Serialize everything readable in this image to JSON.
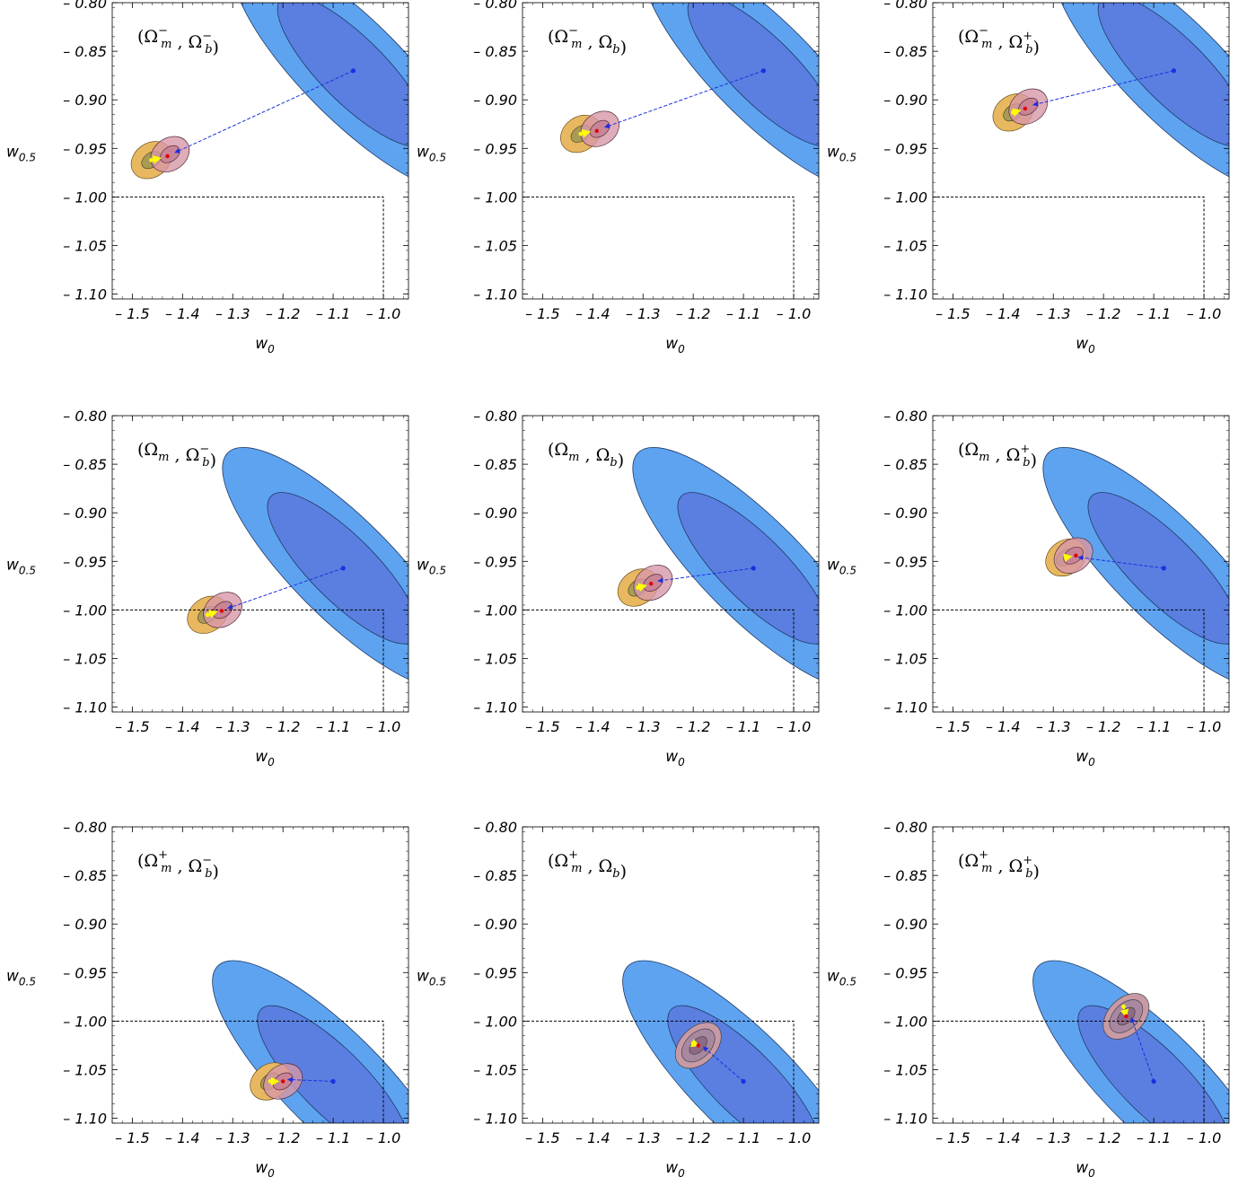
{
  "colors": {
    "blue_outer": "#5ea3f0",
    "blue_inner": "#5a7fe0",
    "orange_outer": "#e8b860",
    "orange_inner": "#a89c55",
    "pink_outer": "#d797a8",
    "pink_inner": "#c57f95",
    "gray_outer": "#c79aa6",
    "marker_blue": "#1d2fe0",
    "marker_yellow": "#ffff00",
    "marker_red": "#e00000"
  },
  "chart_data": [
    {
      "type": "scatter",
      "title": "(Ω_m^-, Ω_b^-)",
      "xlabel": "w_0",
      "ylabel": "w_0.5",
      "xlim": [
        -1.54,
        -0.95
      ],
      "ylim": [
        -1.105,
        -0.8
      ],
      "xticks": [
        "– 1.5",
        "– 1.4",
        "– 1.3",
        "– 1.2",
        "– 1.1",
        "– 1.0"
      ],
      "yticks": [
        "– 0.80",
        "– 0.85",
        "– 0.90",
        "– 0.95",
        "– 1.00",
        "– 1.05",
        "– 1.10"
      ],
      "reference_box": {
        "x": -1.0,
        "y": -1.0
      },
      "blue_best_fit": [
        -1.06,
        -0.87
      ],
      "blue_outer": {
        "cx": -1.06,
        "cy": -0.87,
        "sx": 0.1,
        "sy": 0.12,
        "rot": 45
      },
      "blue_inner": {
        "cx": -1.06,
        "cy": -0.87,
        "sx": 0.065,
        "sy": 0.075,
        "rot": 45
      },
      "orange_center": [
        -1.462,
        -0.962
      ],
      "pink_center": [
        -1.425,
        -0.956
      ],
      "path_yellow": [
        [
          -1.462,
          -0.962
        ],
        [
          -1.445,
          -0.96
        ]
      ],
      "path_red": [
        -1.43,
        -0.958
      ],
      "gray": false
    },
    {
      "type": "scatter",
      "title": "(Ω_m^-, Ω_b)",
      "xlabel": "w_0",
      "ylabel": "w_0.5",
      "xlim": [
        -1.54,
        -0.95
      ],
      "ylim": [
        -1.105,
        -0.8
      ],
      "xticks": [
        "– 1.5",
        "– 1.4",
        "– 1.3",
        "– 1.2",
        "– 1.1",
        "– 1.0"
      ],
      "yticks": [
        "– 0.80",
        "– 0.85",
        "– 0.90",
        "– 0.95",
        "– 1.00",
        "– 1.05",
        "– 1.10"
      ],
      "reference_box": {
        "x": -1.0,
        "y": -1.0
      },
      "blue_best_fit": [
        -1.06,
        -0.87
      ],
      "blue_outer": {
        "cx": -1.06,
        "cy": -0.87,
        "sx": 0.1,
        "sy": 0.12,
        "rot": 45
      },
      "blue_inner": {
        "cx": -1.06,
        "cy": -0.87,
        "sx": 0.065,
        "sy": 0.075,
        "rot": 45
      },
      "orange_center": [
        -1.424,
        -0.935
      ],
      "pink_center": [
        -1.386,
        -0.93
      ],
      "path_yellow": [
        [
          -1.424,
          -0.935
        ],
        [
          -1.407,
          -0.933
        ]
      ],
      "path_red": [
        -1.392,
        -0.932
      ],
      "gray": false
    },
    {
      "type": "scatter",
      "title": "(Ω_m^-, Ω_b^+)",
      "xlabel": "w_0",
      "ylabel": "w_0.5",
      "xlim": [
        -1.54,
        -0.95
      ],
      "ylim": [
        -1.105,
        -0.8
      ],
      "xticks": [
        "– 1.5",
        "– 1.4",
        "– 1.3",
        "– 1.2",
        "– 1.1",
        "– 1.0"
      ],
      "yticks": [
        "– 0.80",
        "– 0.85",
        "– 0.90",
        "– 0.95",
        "– 1.00",
        "– 1.05",
        "– 1.10"
      ],
      "reference_box": {
        "x": -1.0,
        "y": -1.0
      },
      "blue_best_fit": [
        -1.06,
        -0.87
      ],
      "blue_outer": {
        "cx": -1.06,
        "cy": -0.87,
        "sx": 0.1,
        "sy": 0.12,
        "rot": 45
      },
      "blue_inner": {
        "cx": -1.06,
        "cy": -0.87,
        "sx": 0.065,
        "sy": 0.075,
        "rot": 45
      },
      "orange_center": [
        -1.38,
        -0.913
      ],
      "pink_center": [
        -1.35,
        -0.907
      ],
      "path_yellow": [
        [
          -1.38,
          -0.913
        ],
        [
          -1.367,
          -0.911
        ]
      ],
      "path_red": [
        -1.356,
        -0.909
      ],
      "gray": false
    },
    {
      "type": "scatter",
      "title": "(Ω_m, Ω_b^-)",
      "xlabel": "w_0",
      "ylabel": "w_0.5",
      "xlim": [
        -1.54,
        -0.95
      ],
      "ylim": [
        -1.105,
        -0.8
      ],
      "xticks": [
        "– 1.5",
        "– 1.4",
        "– 1.3",
        "– 1.2",
        "– 1.1",
        "– 1.0"
      ],
      "yticks": [
        "– 0.80",
        "– 0.85",
        "– 0.90",
        "– 0.95",
        "– 1.00",
        "– 1.05",
        "– 1.10"
      ],
      "reference_box": {
        "x": -1.0,
        "y": -1.0
      },
      "blue_best_fit": [
        -1.08,
        -0.957
      ],
      "blue_outer": {
        "cx": -1.08,
        "cy": -0.957,
        "sx": 0.1,
        "sy": 0.12,
        "rot": 45
      },
      "blue_inner": {
        "cx": -1.08,
        "cy": -0.957,
        "sx": 0.065,
        "sy": 0.075,
        "rot": 45
      },
      "orange_center": [
        -1.35,
        -1.005
      ],
      "pink_center": [
        -1.32,
        -1.0
      ],
      "path_yellow": [
        [
          -1.35,
          -1.005
        ],
        [
          -1.333,
          -1.002
        ]
      ],
      "path_red": [
        -1.322,
        -1.001
      ],
      "gray": false
    },
    {
      "type": "scatter",
      "title": "(Ω_m, Ω_b)",
      "xlabel": "w_0",
      "ylabel": "w_0.5",
      "xlim": [
        -1.54,
        -0.95
      ],
      "ylim": [
        -1.105,
        -0.8
      ],
      "xticks": [
        "– 1.5",
        "– 1.4",
        "– 1.3",
        "– 1.2",
        "– 1.1",
        "– 1.0"
      ],
      "yticks": [
        "– 0.80",
        "– 0.85",
        "– 0.90",
        "– 0.95",
        "– 1.00",
        "– 1.05",
        "– 1.10"
      ],
      "reference_box": {
        "x": -1.0,
        "y": -1.0
      },
      "blue_best_fit": [
        -1.08,
        -0.957
      ],
      "blue_outer": {
        "cx": -1.08,
        "cy": -0.957,
        "sx": 0.1,
        "sy": 0.12,
        "rot": 45
      },
      "blue_inner": {
        "cx": -1.08,
        "cy": -0.957,
        "sx": 0.065,
        "sy": 0.075,
        "rot": 45
      },
      "orange_center": [
        -1.31,
        -0.977
      ],
      "pink_center": [
        -1.28,
        -0.972
      ],
      "path_yellow": [
        [
          -1.31,
          -0.977
        ],
        [
          -1.295,
          -0.975
        ]
      ],
      "path_red": [
        -1.284,
        -0.973
      ],
      "gray": false
    },
    {
      "type": "scatter",
      "title": "(Ω_m, Ω_b^+)",
      "xlabel": "w_0",
      "ylabel": "w_0.5",
      "xlim": [
        -1.54,
        -0.95
      ],
      "ylim": [
        -1.105,
        -0.8
      ],
      "xticks": [
        "– 1.5",
        "– 1.4",
        "– 1.3",
        "– 1.2",
        "– 1.1",
        "– 1.0"
      ],
      "yticks": [
        "– 0.80",
        "– 0.85",
        "– 0.90",
        "– 0.95",
        "– 1.00",
        "– 1.05",
        "– 1.10"
      ],
      "reference_box": {
        "x": -1.0,
        "y": -1.0
      },
      "blue_best_fit": [
        -1.08,
        -0.957
      ],
      "blue_outer": {
        "cx": -1.08,
        "cy": -0.957,
        "sx": 0.1,
        "sy": 0.12,
        "rot": 45
      },
      "blue_inner": {
        "cx": -1.08,
        "cy": -0.957,
        "sx": 0.065,
        "sy": 0.075,
        "rot": 45
      },
      "orange_center": [
        -1.275,
        -0.946
      ],
      "pink_center": [
        -1.26,
        -0.944
      ],
      "path_yellow": [
        [
          -1.275,
          -0.946
        ],
        [
          -1.265,
          -0.945
        ]
      ],
      "path_red": [
        -1.255,
        -0.944
      ],
      "gray": false
    },
    {
      "type": "scatter",
      "title": "(Ω_m^+, Ω_b^-)",
      "xlabel": "w_0",
      "ylabel": "w_0.5",
      "xlim": [
        -1.54,
        -0.95
      ],
      "ylim": [
        -1.105,
        -0.8
      ],
      "xticks": [
        "– 1.5",
        "– 1.4",
        "– 1.3",
        "– 1.2",
        "– 1.1",
        "– 1.0"
      ],
      "yticks": [
        "– 0.80",
        "– 0.85",
        "– 0.90",
        "– 0.95",
        "– 1.00",
        "– 1.05",
        "– 1.10"
      ],
      "reference_box": {
        "x": -1.0,
        "y": -1.0
      },
      "blue_best_fit": [
        -1.1,
        -1.062
      ],
      "blue_outer": {
        "cx": -1.1,
        "cy": -1.062,
        "sx": 0.1,
        "sy": 0.12,
        "rot": 45
      },
      "blue_inner": {
        "cx": -1.1,
        "cy": -1.062,
        "sx": 0.065,
        "sy": 0.075,
        "rot": 45
      },
      "orange_center": [
        -1.225,
        -1.062
      ],
      "pink_center": [
        -1.2,
        -1.062
      ],
      "path_yellow": [
        [
          -1.225,
          -1.062
        ],
        [
          -1.21,
          -1.062
        ]
      ],
      "path_red": [
        -1.2,
        -1.062
      ],
      "gray": false
    },
    {
      "type": "scatter",
      "title": "(Ω_m^+, Ω_b)",
      "xlabel": "w_0",
      "ylabel": "w_0.5",
      "xlim": [
        -1.54,
        -0.95
      ],
      "ylim": [
        -1.105,
        -0.8
      ],
      "xticks": [
        "– 1.5",
        "– 1.4",
        "– 1.3",
        "– 1.2",
        "– 1.1",
        "– 1.0"
      ],
      "yticks": [
        "– 0.80",
        "– 0.85",
        "– 0.90",
        "– 0.95",
        "– 1.00",
        "– 1.05",
        "– 1.10"
      ],
      "reference_box": {
        "x": -1.0,
        "y": -1.0
      },
      "blue_best_fit": [
        -1.1,
        -1.062
      ],
      "blue_outer": {
        "cx": -1.1,
        "cy": -1.062,
        "sx": 0.1,
        "sy": 0.12,
        "rot": 45
      },
      "blue_inner": {
        "cx": -1.1,
        "cy": -1.062,
        "sx": 0.065,
        "sy": 0.075,
        "rot": 45
      },
      "orange_center": [
        -1.19,
        -1.025
      ],
      "pink_center": [
        -1.19,
        -1.025
      ],
      "path_yellow": [
        [
          -1.2,
          -1.023
        ],
        [
          -1.19,
          -1.025
        ]
      ],
      "path_red": [
        -1.19,
        -1.025
      ],
      "gray": true
    },
    {
      "type": "scatter",
      "title": "(Ω_m^+, Ω_b^+)",
      "xlabel": "w_0",
      "ylabel": "w_0.5",
      "xlim": [
        -1.54,
        -0.95
      ],
      "ylim": [
        -1.105,
        -0.8
      ],
      "xticks": [
        "– 1.5",
        "– 1.4",
        "– 1.3",
        "– 1.2",
        "– 1.1",
        "– 1.0"
      ],
      "yticks": [
        "– 0.80",
        "– 0.85",
        "– 0.90",
        "– 0.95",
        "– 1.00",
        "– 1.05",
        "– 1.10"
      ],
      "reference_box": {
        "x": -1.0,
        "y": -1.0
      },
      "blue_best_fit": [
        -1.1,
        -1.062
      ],
      "blue_outer": {
        "cx": -1.1,
        "cy": -1.062,
        "sx": 0.1,
        "sy": 0.12,
        "rot": 45
      },
      "blue_inner": {
        "cx": -1.1,
        "cy": -1.062,
        "sx": 0.065,
        "sy": 0.075,
        "rot": 45
      },
      "orange_center": [
        -1.155,
        -0.995
      ],
      "pink_center": [
        -1.155,
        -0.995
      ],
      "path_yellow": [
        [
          -1.16,
          -0.985
        ],
        [
          -1.155,
          -0.995
        ]
      ],
      "path_red": [
        -1.155,
        -0.995
      ],
      "gray": true
    }
  ]
}
